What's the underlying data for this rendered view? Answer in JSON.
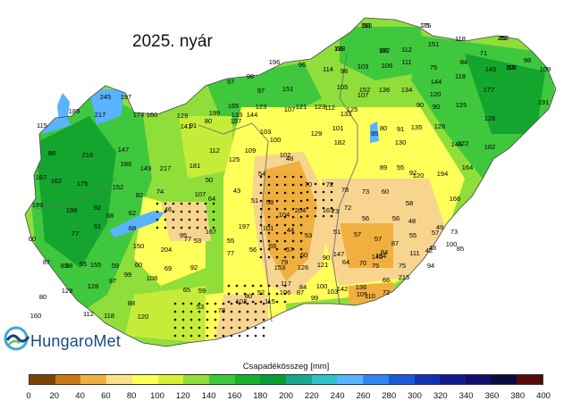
{
  "title": "2025. nyár",
  "logo": {
    "text": "HungaroMet",
    "icon": "hungaromet-wave-logo-icon"
  },
  "legend": {
    "title": "Csapadékösszeg [mm]",
    "ticks": [
      "0",
      "20",
      "40",
      "60",
      "80",
      "100",
      "120",
      "140",
      "160",
      "180",
      "200",
      "220",
      "240",
      "260",
      "280",
      "300",
      "320",
      "340",
      "360",
      "380",
      "400"
    ],
    "colors": [
      "#7a4405",
      "#c97a15",
      "#f0b040",
      "#ffe08a",
      "#ffff5a",
      "#d8f03a",
      "#8fde3a",
      "#3fc83d",
      "#17b02f",
      "#0c9a35",
      "#1aa88c",
      "#2fc2c8",
      "#5ab3ff",
      "#2f86f0",
      "#1a5ad8",
      "#1232b0",
      "#0f1a8c",
      "#100e6a",
      "#0b0a40",
      "#560a08"
    ]
  },
  "map": {
    "country_fill_colors": {
      "dry_core": "#f0b040",
      "dry": "#f7d58f",
      "moderate": "#ffff5a",
      "green_light": "#c6ec3a",
      "green": "#3fc83d",
      "green_dark": "#14a52f",
      "lake": "#5ab3ff",
      "wet": "#7cc0ff"
    },
    "stations": [
      "186",
      "175",
      "132",
      "252",
      "133",
      "102",
      "71",
      "151",
      "118",
      "112",
      "84",
      "111",
      "106",
      "103",
      "98",
      "75",
      "144",
      "145",
      "118",
      "98",
      "109",
      "152",
      "136",
      "134",
      "90",
      "120",
      "177",
      "191",
      "96",
      "114",
      "105",
      "107",
      "125",
      "135",
      "90",
      "125",
      "126",
      "151",
      "196",
      "98",
      "97",
      "97",
      "165",
      "123",
      "107",
      "121",
      "245",
      "197",
      "189",
      "217",
      "174",
      "160",
      "129",
      "199",
      "133",
      "144",
      "141",
      "91",
      "80",
      "157",
      "103",
      "123",
      "112",
      "133",
      "80",
      "91",
      "130",
      "126",
      "146",
      "122",
      "115",
      "88",
      "216",
      "147",
      "186",
      "149",
      "217",
      "181",
      "112",
      "125",
      "109",
      "100",
      "102",
      "129",
      "101",
      "182",
      "95",
      "89",
      "55",
      "120",
      "164",
      "182",
      "167",
      "162",
      "175",
      "152",
      "82",
      "74",
      "107",
      "43",
      "50",
      "54",
      "48",
      "70",
      "72",
      "78",
      "73",
      "60",
      "92",
      "194",
      "166",
      "189",
      "198",
      "92",
      "68",
      "62",
      "46",
      "64",
      "51",
      "58",
      "104",
      "204",
      "163",
      "73",
      "72",
      "56",
      "56",
      "48",
      "58",
      "49",
      "60",
      "77",
      "51",
      "68",
      "95",
      "167",
      "197",
      "101",
      "44",
      "53",
      "51",
      "57",
      "57",
      "87",
      "55",
      "57",
      "48",
      "73",
      "85",
      "87",
      "98",
      "155",
      "150",
      "204",
      "77",
      "53",
      "55",
      "56",
      "69",
      "57",
      "60",
      "90",
      "147",
      "140",
      "164",
      "84",
      "111",
      "100",
      "83",
      "55",
      "59",
      "60",
      "69",
      "92",
      "77",
      "153",
      "79",
      "126",
      "121",
      "64",
      "70",
      "75",
      "75",
      "94",
      "42",
      "80",
      "129",
      "128",
      "97",
      "99",
      "108",
      "65",
      "59",
      "80",
      "52",
      "115",
      "117",
      "84",
      "100",
      "142",
      "136",
      "66",
      "215",
      "160",
      "118",
      "88",
      "53",
      "78",
      "102",
      "106",
      "87",
      "99",
      "103",
      "105",
      "110",
      "72",
      "112",
      "120",
      "50",
      "75",
      "66",
      "82",
      "65",
      "53"
    ]
  }
}
